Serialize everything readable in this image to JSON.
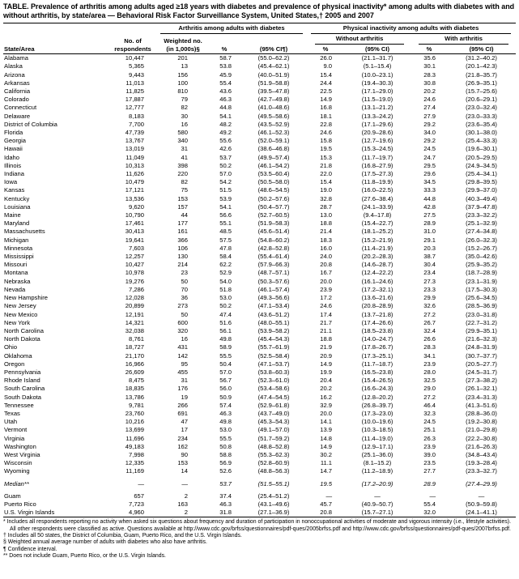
{
  "title": "TABLE. Prevalence of arthritis among adults aged ≥18 years with diabetes and prevalence of physical inactivity* among adults with diabetes with and without arthritis, by state/area — Behavioral Risk Factor Surveillance System, United States,† 2005 and 2007",
  "table": {
    "group_headers": {
      "arthritis": "Arthritis among adults with diabetes",
      "inactivity": "Physical inactivity among adults with diabetes"
    },
    "sub_headers": {
      "without_arthritis": "Without arthritis",
      "with_arthritis": "With arthritis"
    },
    "col_headers": {
      "state": "State/Area",
      "no_of_line1": "No. of",
      "no_of_line2": "respondents",
      "weighted_line1": "Weighted no.",
      "weighted_line2": "(in 1,000s)§",
      "pct": "%",
      "ci_arthritis": "(95% CI¶)",
      "ci": "(95% CI)"
    },
    "rows": [
      {
        "state": "Alabama",
        "respondents": "10,447",
        "weighted": "201",
        "pct": "58.7",
        "ci": "(55.0–62.2)",
        "wo_pct": "26.0",
        "wo_ci": "(21.1–31.7)",
        "w_pct": "35.6",
        "w_ci": "(31.2–40.2)"
      },
      {
        "state": "Alaska",
        "respondents": "5,365",
        "weighted": "13",
        "pct": "53.8",
        "ci": "(45.4–62.1)",
        "wo_pct": "9.0",
        "wo_ci": "(5.1–15.4)",
        "w_pct": "30.1",
        "w_ci": "(20.1–42.3)"
      },
      {
        "state": "Arizona",
        "respondents": "9,443",
        "weighted": "156",
        "pct": "45.9",
        "ci": "(40.0–51.9)",
        "wo_pct": "15.4",
        "wo_ci": "(10.0–23.1)",
        "w_pct": "28.3",
        "w_ci": "(21.8–35.7)"
      },
      {
        "state": "Arkansas",
        "respondents": "11,013",
        "weighted": "100",
        "pct": "55.4",
        "ci": "(51.9–58.8)",
        "wo_pct": "24.4",
        "wo_ci": "(19.4–30.3)",
        "w_pct": "30.8",
        "w_ci": "(26.9–35.1)"
      },
      {
        "state": "California",
        "respondents": "11,825",
        "weighted": "810",
        "pct": "43.6",
        "ci": "(39.5–47.8)",
        "wo_pct": "22.5",
        "wo_ci": "(17.1–29.0)",
        "w_pct": "20.2",
        "w_ci": "(15.7–25.6)"
      },
      {
        "state": "Colorado",
        "respondents": "17,887",
        "weighted": "79",
        "pct": "46.3",
        "ci": "(42.7–49.8)",
        "wo_pct": "14.9",
        "wo_ci": "(11.5–19.0)",
        "w_pct": "24.6",
        "w_ci": "(20.6–29.1)"
      },
      {
        "state": "Connecticut",
        "respondents": "12,777",
        "weighted": "82",
        "pct": "44.8",
        "ci": "(41.0–48.6)",
        "wo_pct": "16.8",
        "wo_ci": "(13.1–21.2)",
        "w_pct": "27.4",
        "w_ci": "(23.0–32.4)"
      },
      {
        "state": "Delaware",
        "respondents": "8,183",
        "weighted": "30",
        "pct": "54.1",
        "ci": "(49.5–58.6)",
        "wo_pct": "18.1",
        "wo_ci": "(13.3–24.2)",
        "w_pct": "27.9",
        "w_ci": "(23.0–33.3)"
      },
      {
        "state": "District of Columbia",
        "respondents": "7,700",
        "weighted": "16",
        "pct": "48.2",
        "ci": "(43.5–52.9)",
        "wo_pct": "22.8",
        "wo_ci": "(17.1–29.6)",
        "w_pct": "29.2",
        "w_ci": "(23.6–35.4)"
      },
      {
        "state": "Florida",
        "respondents": "47,739",
        "weighted": "580",
        "pct": "49.2",
        "ci": "(46.1–52.3)",
        "wo_pct": "24.6",
        "wo_ci": "(20.9–28.6)",
        "w_pct": "34.0",
        "w_ci": "(30.1–38.0)"
      },
      {
        "state": "Georgia",
        "respondents": "13,767",
        "weighted": "340",
        "pct": "55.6",
        "ci": "(52.0–59.1)",
        "wo_pct": "15.8",
        "wo_ci": "(12.7–19.6)",
        "w_pct": "29.2",
        "w_ci": "(25.4–33.3)"
      },
      {
        "state": "Hawaii",
        "respondents": "13,019",
        "weighted": "31",
        "pct": "42.6",
        "ci": "(38.6–46.8)",
        "wo_pct": "19.5",
        "wo_ci": "(15.3–24.5)",
        "w_pct": "24.5",
        "w_ci": "(19.6–30.1)"
      },
      {
        "state": "Idaho",
        "respondents": "11,049",
        "weighted": "41",
        "pct": "53.7",
        "ci": "(49.9–57.4)",
        "wo_pct": "15.3",
        "wo_ci": "(11.7–19.7)",
        "w_pct": "24.7",
        "w_ci": "(20.5–29.5)"
      },
      {
        "state": "Illinois",
        "respondents": "10,313",
        "weighted": "398",
        "pct": "50.2",
        "ci": "(46.1–54.2)",
        "wo_pct": "21.8",
        "wo_ci": "(16.8–27.9)",
        "w_pct": "29.5",
        "w_ci": "(24.9–34.5)"
      },
      {
        "state": "Indiana",
        "respondents": "11,626",
        "weighted": "220",
        "pct": "57.0",
        "ci": "(53.5–60.4)",
        "wo_pct": "22.0",
        "wo_ci": "(17.5–27.3)",
        "w_pct": "29.6",
        "w_ci": "(25.4–34.1)"
      },
      {
        "state": "Iowa",
        "respondents": "10,479",
        "weighted": "82",
        "pct": "54.2",
        "ci": "(50.5–58.0)",
        "wo_pct": "15.4",
        "wo_ci": "(11.8–19.9)",
        "w_pct": "34.5",
        "w_ci": "(29.8–39.5)"
      },
      {
        "state": "Kansas",
        "respondents": "17,121",
        "weighted": "75",
        "pct": "51.5",
        "ci": "(48.6–54.5)",
        "wo_pct": "19.0",
        "wo_ci": "(16.0–22.5)",
        "w_pct": "33.3",
        "w_ci": "(29.9–37.0)"
      },
      {
        "state": "Kentucky",
        "respondents": "13,536",
        "weighted": "153",
        "pct": "53.9",
        "ci": "(50.2–57.6)",
        "wo_pct": "32.8",
        "wo_ci": "(27.6–38.4)",
        "w_pct": "44.8",
        "w_ci": "(40.3–49.4)"
      },
      {
        "state": "Louisiana",
        "respondents": "9,620",
        "weighted": "157",
        "pct": "54.1",
        "ci": "(50.4–57.7)",
        "wo_pct": "28.7",
        "wo_ci": "(24.1–33.9)",
        "w_pct": "42.8",
        "w_ci": "(37.9–47.8)"
      },
      {
        "state": "Maine",
        "respondents": "10,790",
        "weighted": "44",
        "pct": "56.6",
        "ci": "(52.7–60.5)",
        "wo_pct": "13.0",
        "wo_ci": "(9.4–17.8)",
        "w_pct": "27.5",
        "w_ci": "(23.3–32.2)"
      },
      {
        "state": "Maryland",
        "respondents": "17,461",
        "weighted": "177",
        "pct": "55.1",
        "ci": "(51.9–58.3)",
        "wo_pct": "18.8",
        "wo_ci": "(15.4–22.7)",
        "w_pct": "28.9",
        "w_ci": "(25.1–32.9)"
      },
      {
        "state": "Massachusetts",
        "respondents": "30,413",
        "weighted": "161",
        "pct": "48.5",
        "ci": "(45.6–51.4)",
        "wo_pct": "21.4",
        "wo_ci": "(18.1–25.2)",
        "w_pct": "31.0",
        "w_ci": "(27.4–34.8)"
      },
      {
        "state": "Michigan",
        "respondents": "19,641",
        "weighted": "366",
        "pct": "57.5",
        "ci": "(54.8–60.2)",
        "wo_pct": "18.3",
        "wo_ci": "(15.2–21.9)",
        "w_pct": "29.1",
        "w_ci": "(26.0–32.3)"
      },
      {
        "state": "Minnesota",
        "respondents": "7,603",
        "weighted": "106",
        "pct": "47.8",
        "ci": "(42.8–52.8)",
        "wo_pct": "16.0",
        "wo_ci": "(11.4–21.9)",
        "w_pct": "20.3",
        "w_ci": "(15.2–26.7)"
      },
      {
        "state": "Mississippi",
        "respondents": "12,257",
        "weighted": "130",
        "pct": "58.4",
        "ci": "(55.4–61.4)",
        "wo_pct": "24.0",
        "wo_ci": "(20.2–28.3)",
        "w_pct": "38.7",
        "w_ci": "(35.0–42.6)"
      },
      {
        "state": "Missouri",
        "respondents": "10,427",
        "weighted": "214",
        "pct": "62.2",
        "ci": "(57.9–66.3)",
        "wo_pct": "20.8",
        "wo_ci": "(14.6–28.7)",
        "w_pct": "30.4",
        "w_ci": "(25.9–35.2)"
      },
      {
        "state": "Montana",
        "respondents": "10,978",
        "weighted": "23",
        "pct": "52.9",
        "ci": "(48.7–57.1)",
        "wo_pct": "16.7",
        "wo_ci": "(12.4–22.2)",
        "w_pct": "23.4",
        "w_ci": "(18.7–28.9)"
      },
      {
        "state": "Nebraska",
        "respondents": "19,276",
        "weighted": "50",
        "pct": "54.0",
        "ci": "(50.3–57.6)",
        "wo_pct": "20.0",
        "wo_ci": "(16.1–24.6)",
        "w_pct": "27.3",
        "w_ci": "(23.1–31.9)"
      },
      {
        "state": "Nevada",
        "respondents": "7,286",
        "weighted": "70",
        "pct": "51.8",
        "ci": "(46.1–57.4)",
        "wo_pct": "23.9",
        "wo_ci": "(17.2–32.1)",
        "w_pct": "23.3",
        "w_ci": "(17.5–30.3)"
      },
      {
        "state": "New Hampshire",
        "respondents": "12,028",
        "weighted": "36",
        "pct": "53.0",
        "ci": "(49.3–56.6)",
        "wo_pct": "17.2",
        "wo_ci": "(13.6–21.6)",
        "w_pct": "29.9",
        "w_ci": "(25.6–34.5)"
      },
      {
        "state": "New Jersey",
        "respondents": "20,899",
        "weighted": "273",
        "pct": "50.2",
        "ci": "(47.1–53.4)",
        "wo_pct": "24.6",
        "wo_ci": "(20.8–28.9)",
        "w_pct": "32.6",
        "w_ci": "(28.5–36.9)"
      },
      {
        "state": "New Mexico",
        "respondents": "12,191",
        "weighted": "50",
        "pct": "47.4",
        "ci": "(43.6–51.2)",
        "wo_pct": "17.4",
        "wo_ci": "(13.7–21.8)",
        "w_pct": "27.2",
        "w_ci": "(23.0–31.8)"
      },
      {
        "state": "New York",
        "respondents": "14,321",
        "weighted": "600",
        "pct": "51.6",
        "ci": "(48.0–55.1)",
        "wo_pct": "21.7",
        "wo_ci": "(17.4–26.6)",
        "w_pct": "26.7",
        "w_ci": "(22.7–31.2)"
      },
      {
        "state": "North Carolina",
        "respondents": "32,038",
        "weighted": "320",
        "pct": "56.1",
        "ci": "(53.9–58.2)",
        "wo_pct": "21.1",
        "wo_ci": "(18.5–23.8)",
        "w_pct": "32.4",
        "w_ci": "(29.9–35.1)"
      },
      {
        "state": "North Dakota",
        "respondents": "8,761",
        "weighted": "16",
        "pct": "49.8",
        "ci": "(45.4–54.3)",
        "wo_pct": "18.8",
        "wo_ci": "(14.0–24.7)",
        "w_pct": "26.6",
        "w_ci": "(21.6–32.3)"
      },
      {
        "state": "Ohio",
        "respondents": "18,727",
        "weighted": "431",
        "pct": "58.9",
        "ci": "(55.7–61.9)",
        "wo_pct": "21.9",
        "wo_ci": "(17.8–26.7)",
        "w_pct": "28.3",
        "w_ci": "(24.8–31.9)"
      },
      {
        "state": "Oklahoma",
        "respondents": "21,170",
        "weighted": "142",
        "pct": "55.5",
        "ci": "(52.5–58.4)",
        "wo_pct": "20.9",
        "wo_ci": "(17.3–25.1)",
        "w_pct": "34.1",
        "w_ci": "(30.7–37.7)"
      },
      {
        "state": "Oregon",
        "respondents": "16,966",
        "weighted": "95",
        "pct": "50.4",
        "ci": "(47.1–53.7)",
        "wo_pct": "14.9",
        "wo_ci": "(11.7–18.7)",
        "w_pct": "23.9",
        "w_ci": "(20.5–27.7)"
      },
      {
        "state": "Pennsylvania",
        "respondents": "26,609",
        "weighted": "455",
        "pct": "57.0",
        "ci": "(53.8–60.3)",
        "wo_pct": "19.9",
        "wo_ci": "(16.5–23.8)",
        "w_pct": "28.0",
        "w_ci": "(24.5–31.7)"
      },
      {
        "state": "Rhode Island",
        "respondents": "8,475",
        "weighted": "31",
        "pct": "56.7",
        "ci": "(52.3–61.0)",
        "wo_pct": "20.4",
        "wo_ci": "(15.4–26.5)",
        "w_pct": "32.5",
        "w_ci": "(27.3–38.2)"
      },
      {
        "state": "South Carolina",
        "respondents": "18,835",
        "weighted": "176",
        "pct": "56.0",
        "ci": "(53.4–58.6)",
        "wo_pct": "20.2",
        "wo_ci": "(16.6–24.3)",
        "w_pct": "29.0",
        "w_ci": "(26.1–32.1)"
      },
      {
        "state": "South Dakota",
        "respondents": "13,786",
        "weighted": "19",
        "pct": "50.9",
        "ci": "(47.4–54.5)",
        "wo_pct": "16.2",
        "wo_ci": "(12.8–20.2)",
        "w_pct": "27.2",
        "w_ci": "(23.4–31.3)"
      },
      {
        "state": "Tennessee",
        "respondents": "9,781",
        "weighted": "266",
        "pct": "57.4",
        "ci": "(52.9–61.8)",
        "wo_pct": "32.9",
        "wo_ci": "(26.8–39.7)",
        "w_pct": "46.4",
        "w_ci": "(41.3–51.6)"
      },
      {
        "state": "Texas",
        "respondents": "23,760",
        "weighted": "691",
        "pct": "46.3",
        "ci": "(43.7–49.0)",
        "wo_pct": "20.0",
        "wo_ci": "(17.3–23.0)",
        "w_pct": "32.3",
        "w_ci": "(28.8–36.0)"
      },
      {
        "state": "Utah",
        "respondents": "10,216",
        "weighted": "47",
        "pct": "49.8",
        "ci": "(45.3–54.3)",
        "wo_pct": "14.1",
        "wo_ci": "(10.0–19.6)",
        "w_pct": "24.5",
        "w_ci": "(19.2–30.8)"
      },
      {
        "state": "Vermont",
        "respondents": "13,699",
        "weighted": "17",
        "pct": "53.0",
        "ci": "(49.1–57.0)",
        "wo_pct": "13.9",
        "wo_ci": "(10.3–18.5)",
        "w_pct": "25.1",
        "w_ci": "(21.0–29.8)"
      },
      {
        "state": "Virginia",
        "respondents": "11,696",
        "weighted": "234",
        "pct": "55.5",
        "ci": "(51.7–59.2)",
        "wo_pct": "14.8",
        "wo_ci": "(11.4–19.0)",
        "w_pct": "26.3",
        "w_ci": "(22.2–30.8)"
      },
      {
        "state": "Washington",
        "respondents": "49,183",
        "weighted": "162",
        "pct": "50.8",
        "ci": "(48.8–52.8)",
        "wo_pct": "14.9",
        "wo_ci": "(12.9–17.1)",
        "w_pct": "23.9",
        "w_ci": "(21.6–26.3)"
      },
      {
        "state": "West Virginia",
        "respondents": "7,998",
        "weighted": "90",
        "pct": "58.8",
        "ci": "(55.3–62.3)",
        "wo_pct": "30.2",
        "wo_ci": "(25.1–36.0)",
        "w_pct": "39.0",
        "w_ci": "(34.8–43.4)"
      },
      {
        "state": "Wisconsin",
        "respondents": "12,335",
        "weighted": "153",
        "pct": "56.9",
        "ci": "(52.8–60.9)",
        "wo_pct": "11.1",
        "wo_ci": "(8.1–15.2)",
        "w_pct": "23.5",
        "w_ci": "(19.3–28.4)"
      },
      {
        "state": "Wyoming",
        "respondents": "11,169",
        "weighted": "14",
        "pct": "52.6",
        "ci": "(48.8–56.3)",
        "wo_pct": "14.7",
        "wo_ci": "(11.2–18.9)",
        "w_pct": "27.7",
        "w_ci": "(23.3–32.7)"
      }
    ],
    "median_row": {
      "state": "Median**",
      "respondents": "—",
      "weighted": "—",
      "pct": "53.7",
      "ci": "(51.5–55.1)",
      "wo_pct": "19.5",
      "wo_ci": "(17.2–20.9)",
      "w_pct": "28.9",
      "w_ci": "(27.4–29.9)"
    },
    "territory_rows": [
      {
        "state": "Guam",
        "respondents": "657",
        "weighted": "2",
        "pct": "37.4",
        "ci": "(25.4–51.2)",
        "wo_pct": "—",
        "wo_ci": "—",
        "w_pct": "—",
        "w_ci": "—"
      },
      {
        "state": "Puerto Rico",
        "respondents": "7,723",
        "weighted": "163",
        "pct": "46.3",
        "ci": "(43.1–49.6)",
        "wo_pct": "45.7",
        "wo_ci": "(40.9–50.7)",
        "w_pct": "55.4",
        "w_ci": "(50.9–59.8)"
      },
      {
        "state": "U.S. Virgin Islands",
        "respondents": "4,960",
        "weighted": "2",
        "pct": "31.8",
        "ci": "(27.1–36.9)",
        "wo_pct": "20.8",
        "wo_ci": "(15.7–27.1)",
        "w_pct": "32.0",
        "w_ci": "(24.1–41.1)"
      }
    ]
  },
  "footnotes": [
    "* Includes all respondents reporting no activity when asked six questions about frequency and duration of participation in nonoccupational activities of moderate and vigorous intensity (i.e., lifestyle activities). All other respondents were classified as active. Questions available at http://www.cdc.gov/brfss/questionnaires/pdf-ques/2005brfss.pdf and http://www.cdc.gov/brfss/questionnaires/pdf-ques/2007brfss.pdf.",
    "† Includes all 50 states, the District of Columbia, Guam, Puerto Rico, and the U.S. Virgin Islands.",
    "§ Weighted annual average number of adults with diabetes who also have arthritis.",
    "¶ Confidence interval.",
    "** Does not include Guam, Puerto Rico, or the U.S. Virgin Islands."
  ]
}
